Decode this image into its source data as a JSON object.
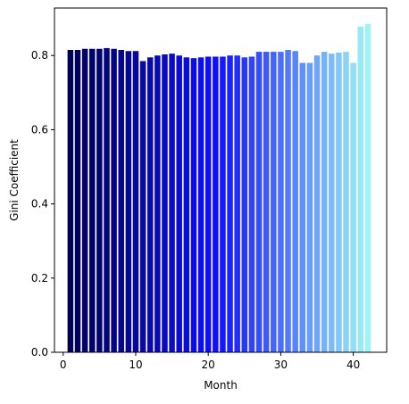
{
  "chart_data": {
    "type": "bar",
    "title": "",
    "xlabel": "Month",
    "ylabel": "Gini Coefficient",
    "xlim": [
      -1.2,
      44.6
    ],
    "ylim": [
      0,
      0.928
    ],
    "xticks": [
      0,
      10,
      20,
      30,
      40
    ],
    "yticks": [
      0.0,
      0.2,
      0.4,
      0.6,
      0.8
    ],
    "ytick_labels": [
      "0.0",
      "0.2",
      "0.4",
      "0.6",
      "0.8"
    ],
    "grid": false,
    "legend": false,
    "bar_width": 0.8,
    "color_gradient": [
      "#000055",
      "#1010ff",
      "#9ff5f5"
    ],
    "x": [
      1,
      2,
      3,
      4,
      5,
      6,
      7,
      8,
      9,
      10,
      11,
      12,
      13,
      14,
      15,
      16,
      17,
      18,
      19,
      20,
      21,
      22,
      23,
      24,
      25,
      26,
      27,
      28,
      29,
      30,
      31,
      32,
      33,
      34,
      35,
      36,
      37,
      38,
      39,
      40,
      41,
      42
    ],
    "values": [
      0.815,
      0.815,
      0.818,
      0.818,
      0.818,
      0.82,
      0.818,
      0.815,
      0.812,
      0.812,
      0.785,
      0.795,
      0.8,
      0.803,
      0.805,
      0.8,
      0.795,
      0.793,
      0.795,
      0.797,
      0.797,
      0.797,
      0.8,
      0.8,
      0.795,
      0.797,
      0.81,
      0.81,
      0.81,
      0.81,
      0.815,
      0.812,
      0.78,
      0.78,
      0.8,
      0.81,
      0.805,
      0.808,
      0.81,
      0.78,
      0.878,
      0.885
    ]
  }
}
